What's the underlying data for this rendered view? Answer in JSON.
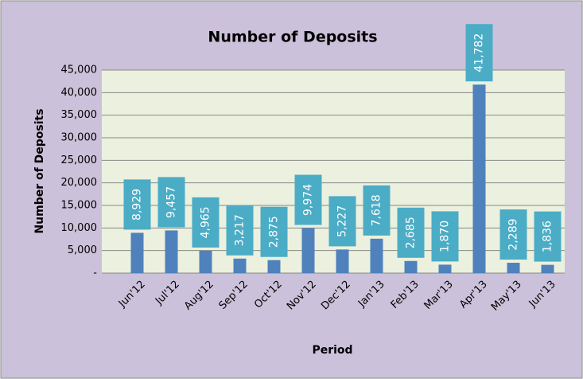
{
  "chart_data": {
    "type": "bar",
    "title": "Number of Deposits",
    "x_label": "Period",
    "y_label": "Number of Deposits",
    "categories": [
      "Jun'12",
      "Jul'12",
      "Aug'12",
      "Sep'12",
      "Oct'12",
      "Nov'12",
      "Dec'12",
      "Jan'13",
      "Feb'13",
      "Mar'13",
      "Apr'13",
      "May'13",
      "Jun'13"
    ],
    "values": [
      8929,
      9457,
      4965,
      3217,
      2875,
      9974,
      5227,
      7618,
      2685,
      1870,
      41782,
      2289,
      1836
    ],
    "value_labels": [
      "8,929",
      "9,457",
      "4,965",
      "3,217",
      "2,875",
      "9,974",
      "5,227",
      "7,618",
      "2,685",
      "1,870",
      "41,782",
      "2,289",
      "1,836"
    ],
    "color": "#4f81bd",
    "label_color": "#4bacc6",
    "ylim": [
      0,
      45000
    ],
    "yticks": [
      {
        "value": 0,
        "label": "-"
      },
      {
        "value": 5000,
        "label": "5,000"
      },
      {
        "value": 10000,
        "label": "10,000"
      },
      {
        "value": 15000,
        "label": "15,000"
      },
      {
        "value": 20000,
        "label": "20,000"
      },
      {
        "value": 25000,
        "label": "25,000"
      },
      {
        "value": 30000,
        "label": "30,000"
      },
      {
        "value": 35000,
        "label": "35,000"
      },
      {
        "value": 40000,
        "label": "40,000"
      },
      {
        "value": 45000,
        "label": "45,000"
      }
    ],
    "grid": true
  }
}
